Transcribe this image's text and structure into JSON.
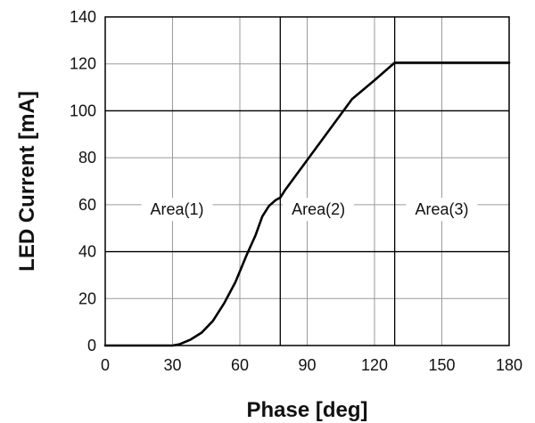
{
  "chart_data": {
    "type": "line",
    "title": "",
    "xlabel": "Phase [deg]",
    "ylabel": "LED Current [mA]",
    "xlim": [
      0,
      180
    ],
    "ylim": [
      0,
      140
    ],
    "xticks": [
      "0",
      "30",
      "60",
      "90",
      "120",
      "150",
      "180"
    ],
    "yticks": [
      "0",
      "20",
      "40",
      "60",
      "80",
      "100",
      "120",
      "140"
    ],
    "grid": "major",
    "legend": "none",
    "colors": {
      "line": "#000000",
      "grid": "#9a9a9a",
      "boundary": "#000000"
    },
    "boundaries": [
      {
        "x": 78
      },
      {
        "x": 129
      },
      {
        "y": 40
      },
      {
        "y": 100
      }
    ],
    "areas": [
      {
        "label": "Area(1)",
        "x": 32,
        "y": 58
      },
      {
        "label": "Area(2)",
        "x": 95,
        "y": 58
      },
      {
        "label": "Area(3)",
        "x": 150,
        "y": 58
      }
    ],
    "series": [
      {
        "x": [
          0,
          30,
          33,
          38,
          43,
          48,
          53,
          58,
          63,
          67,
          70,
          73,
          76,
          78,
          80,
          90,
          100,
          110,
          120,
          129,
          180
        ],
        "y": [
          0,
          0,
          0.5,
          2.5,
          5.5,
          10.5,
          18,
          27,
          38.5,
          47,
          55,
          59.5,
          62,
          63,
          66,
          79,
          92,
          105,
          113,
          120.5,
          120.5
        ]
      }
    ]
  }
}
